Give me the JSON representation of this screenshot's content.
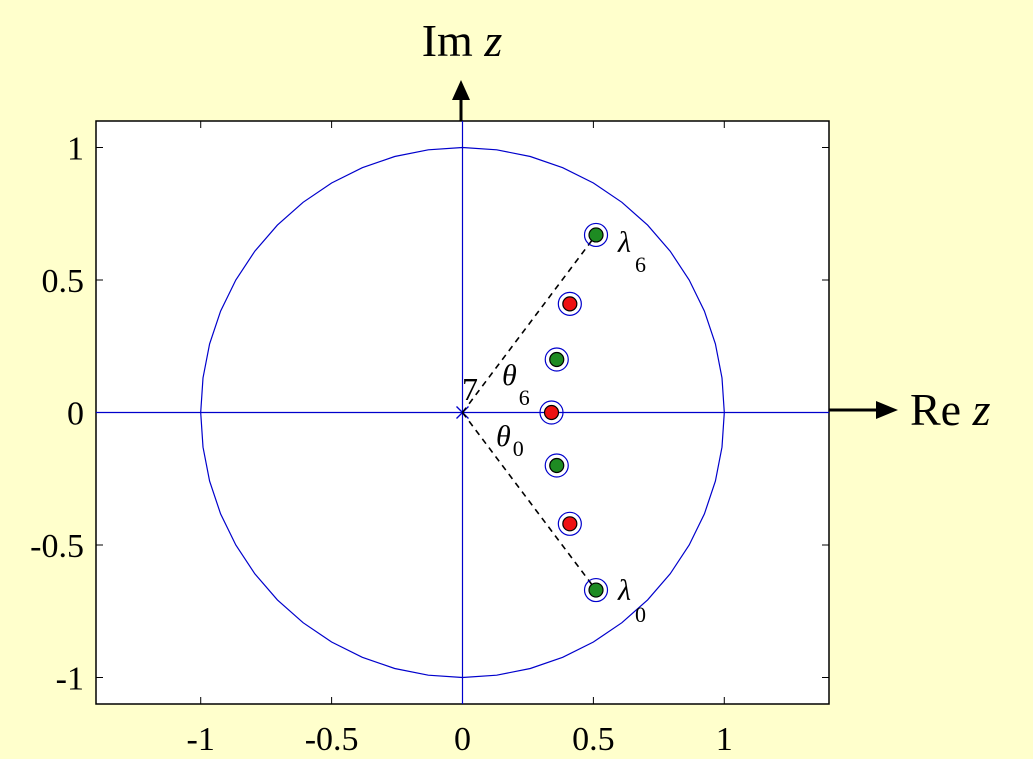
{
  "chart_data": {
    "type": "scatter",
    "title": "",
    "ylabel_prefix": "Im",
    "ylabel_var": "z",
    "xlabel_prefix": "Re",
    "xlabel_var": "z",
    "xlim": [
      -1.4,
      1.4
    ],
    "ylim": [
      -1.1,
      1.1
    ],
    "xticks": [
      -1,
      -0.5,
      0,
      0.5,
      1
    ],
    "xtick_labels": [
      "-1",
      "-0.5",
      "0",
      "0.5",
      "1"
    ],
    "yticks": [
      1,
      0.5,
      0,
      -0.5,
      -1
    ],
    "ytick_labels": [
      "1",
      "0.5",
      "0",
      "-0.5",
      "-1"
    ],
    "unit_circle": true,
    "pole_label": "7",
    "series": [
      {
        "marker": "open-circle",
        "color": "#0000CC",
        "points": [
          {
            "x": 0.51,
            "y": 0.67
          },
          {
            "x": 0.41,
            "y": 0.41
          },
          {
            "x": 0.36,
            "y": 0.2
          },
          {
            "x": 0.34,
            "y": 0.0
          },
          {
            "x": 0.36,
            "y": -0.2
          },
          {
            "x": 0.41,
            "y": -0.42
          },
          {
            "x": 0.51,
            "y": -0.67
          }
        ]
      },
      {
        "marker": "filled-dot",
        "points": [
          {
            "x": 0.51,
            "y": 0.67,
            "color": "#1E8B22"
          },
          {
            "x": 0.41,
            "y": 0.41,
            "color": "#EE1111"
          },
          {
            "x": 0.36,
            "y": 0.2,
            "color": "#1E8B22"
          },
          {
            "x": 0.34,
            "y": 0.0,
            "color": "#EE1111"
          },
          {
            "x": 0.36,
            "y": -0.2,
            "color": "#1E8B22"
          },
          {
            "x": 0.41,
            "y": -0.42,
            "color": "#EE1111"
          },
          {
            "x": 0.51,
            "y": -0.67,
            "color": "#1E8B22"
          }
        ]
      }
    ],
    "annotations": {
      "lambda_top": {
        "symbol": "λ",
        "sub": "6",
        "x": 0.51,
        "y": 0.67
      },
      "lambda_bottom": {
        "symbol": "λ",
        "sub": "0",
        "x": 0.51,
        "y": -0.67
      },
      "theta_top": {
        "symbol": "θ",
        "sub": "6"
      },
      "theta_bottom": {
        "symbol": "θ",
        "sub": "0"
      }
    },
    "grid": false
  },
  "colors": {
    "background": "#FFFFCC",
    "axes_blue": "#0000CC",
    "green": "#1E8B22",
    "red": "#EE1111"
  }
}
